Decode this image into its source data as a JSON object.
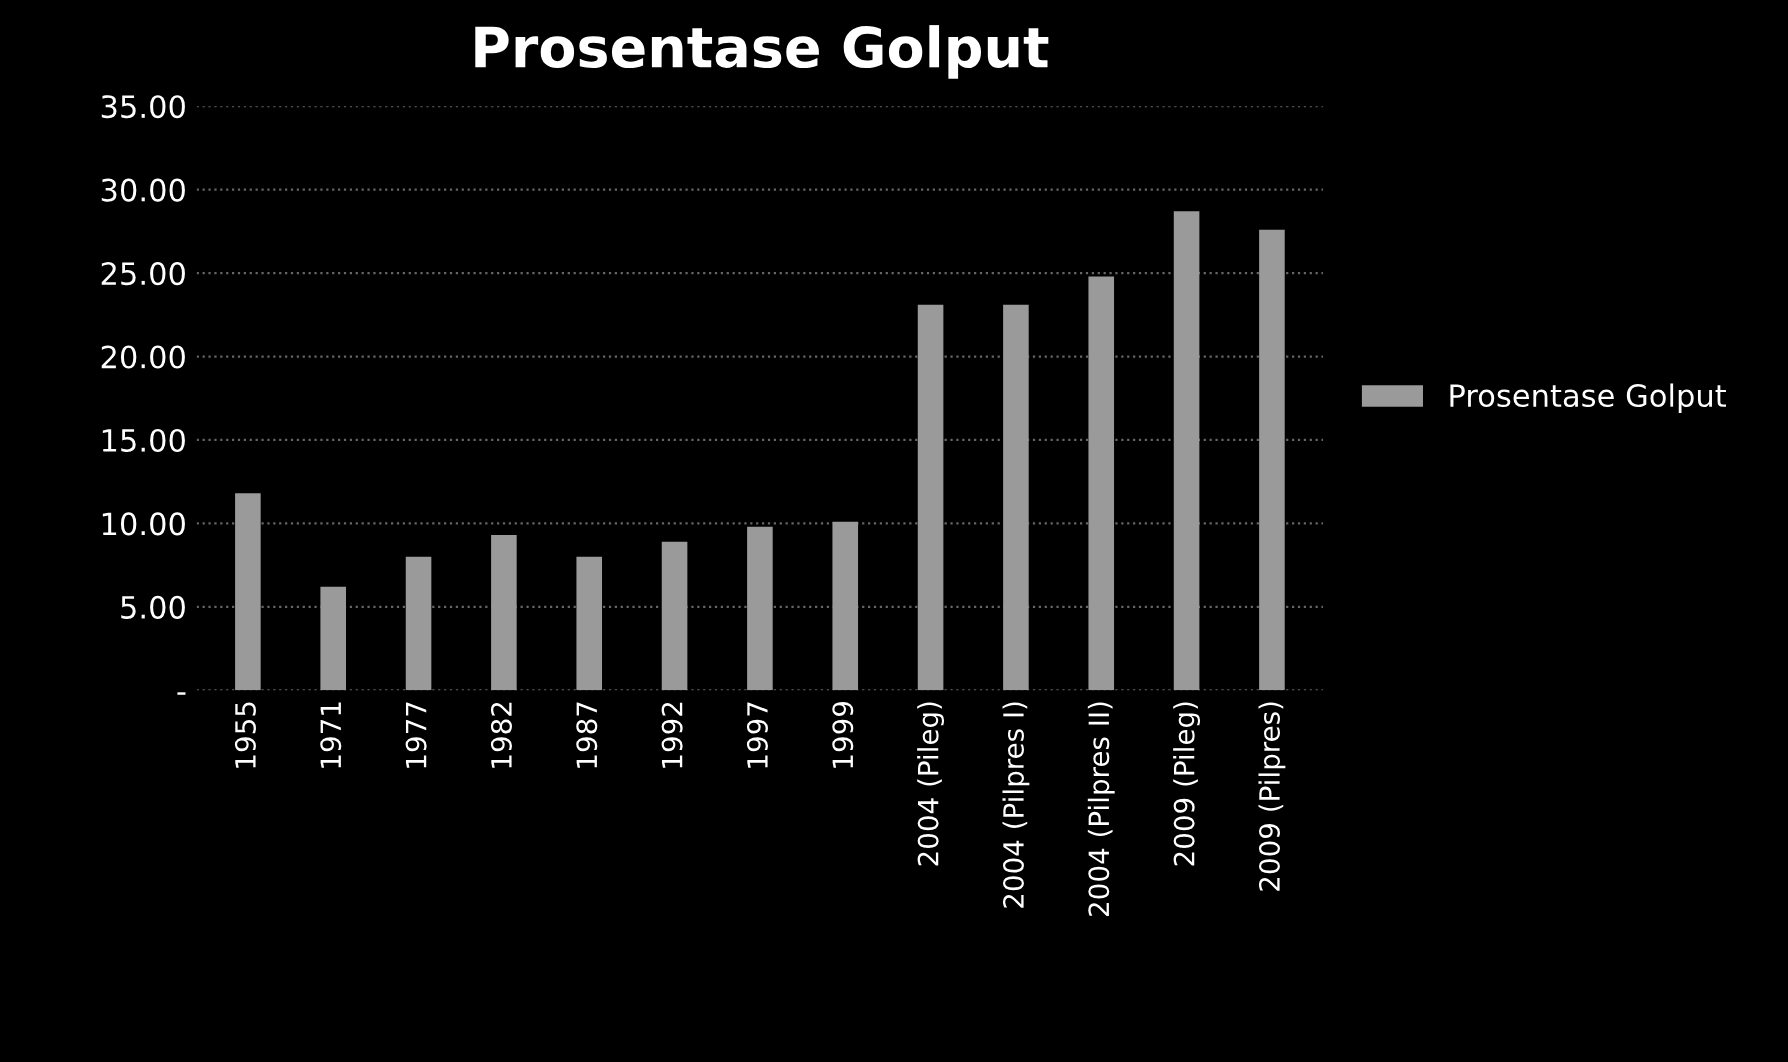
{
  "chart_data": {
    "type": "bar",
    "title": "Prosentase Golput",
    "categories": [
      "1955",
      "1971",
      "1977",
      "1982",
      "1987",
      "1992",
      "1997",
      "1999",
      "2004 (Pileg)",
      "2004 (Pilpres I)",
      "2004 (Pilpres II)",
      "2009 (Pileg)",
      "2009 (Pilpres)"
    ],
    "series": [
      {
        "name": "Prosentase Golput",
        "color": "#9a9a9a",
        "values": [
          11.8,
          6.2,
          8.0,
          9.3,
          8.0,
          8.9,
          9.8,
          10.1,
          23.1,
          23.1,
          24.8,
          28.7,
          27.6
        ]
      }
    ],
    "ylim": [
      0,
      35
    ],
    "yticks": [
      {
        "value": 0,
        "label": "-"
      },
      {
        "value": 5,
        "label": "5.00"
      },
      {
        "value": 10,
        "label": "10.00"
      },
      {
        "value": 15,
        "label": "15.00"
      },
      {
        "value": 20,
        "label": "20.00"
      },
      {
        "value": 25,
        "label": "25.00"
      },
      {
        "value": 30,
        "label": "30.00"
      },
      {
        "value": 35,
        "label": "35.00"
      }
    ],
    "grid": "y",
    "legend": "right"
  }
}
